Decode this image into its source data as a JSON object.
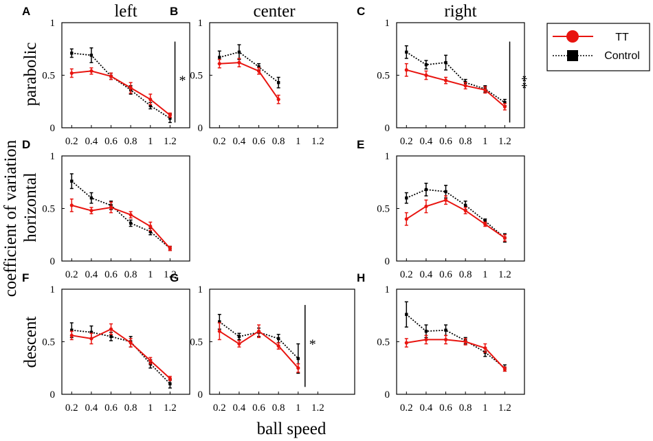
{
  "figure": {
    "column_titles": [
      "left",
      "center",
      "right"
    ],
    "row_titles": [
      "parabolic",
      "horizontal",
      "descent"
    ],
    "ylabel": "coefficient of variation",
    "xlabel": "ball speed",
    "legend": {
      "series": [
        {
          "name": "TT",
          "color": "#e8140f",
          "marker": "circle",
          "style": "solid"
        },
        {
          "name": "Control",
          "color": "#000000",
          "marker": "square",
          "style": "dotted"
        }
      ]
    }
  },
  "chart_data": [
    {
      "letter": "A",
      "row": "parabolic",
      "col": "left",
      "type": "line",
      "x": [
        0.2,
        0.4,
        0.6,
        0.8,
        1,
        1.2
      ],
      "xticks": [
        "0.2",
        "0.4",
        "0.6",
        "0.8",
        "1",
        "1.2"
      ],
      "yticks": [
        "0",
        "0.5",
        "1"
      ],
      "ylim": [
        0,
        1
      ],
      "series": [
        {
          "name": "TT",
          "values": [
            0.52,
            0.54,
            0.49,
            0.38,
            0.27,
            0.12
          ],
          "errors": [
            0.04,
            0.03,
            0.03,
            0.05,
            0.05,
            0.02
          ]
        },
        {
          "name": "Control",
          "values": [
            0.71,
            0.69,
            0.49,
            0.36,
            0.21,
            0.09
          ],
          "errors": [
            0.04,
            0.07,
            0.03,
            0.04,
            0.03,
            0.04
          ]
        }
      ],
      "significance": {
        "label": "*",
        "x": 1.25,
        "y_range": [
          0.05,
          0.82
        ]
      }
    },
    {
      "letter": "B",
      "row": "parabolic",
      "col": "center",
      "type": "line",
      "x": [
        0.2,
        0.4,
        0.6,
        0.8
      ],
      "xticks": [
        "0.2",
        "0.4",
        "0.6",
        "0.8",
        "1",
        "1.2"
      ],
      "yticks": [
        "0",
        "0.5",
        "1"
      ],
      "ylim": [
        0,
        1
      ],
      "series": [
        {
          "name": "TT",
          "values": [
            0.61,
            0.62,
            0.54,
            0.27
          ],
          "errors": [
            0.04,
            0.04,
            0.03,
            0.04
          ]
        },
        {
          "name": "Control",
          "values": [
            0.67,
            0.72,
            0.58,
            0.43
          ],
          "errors": [
            0.06,
            0.07,
            0.03,
            0.05
          ]
        }
      ]
    },
    {
      "letter": "C",
      "row": "parabolic",
      "col": "right",
      "type": "line",
      "x": [
        0.2,
        0.4,
        0.6,
        0.8,
        1,
        1.2
      ],
      "xticks": [
        "0.2",
        "0.4",
        "0.6",
        "0.8",
        "1",
        "1.2"
      ],
      "yticks": [
        "0",
        "0.5",
        "1"
      ],
      "ylim": [
        0,
        1
      ],
      "series": [
        {
          "name": "TT",
          "values": [
            0.55,
            0.5,
            0.45,
            0.4,
            0.36,
            0.2
          ],
          "errors": [
            0.06,
            0.04,
            0.03,
            0.03,
            0.03,
            0.03
          ]
        },
        {
          "name": "Control",
          "values": [
            0.72,
            0.6,
            0.62,
            0.43,
            0.37,
            0.24
          ],
          "errors": [
            0.06,
            0.04,
            0.07,
            0.03,
            0.03,
            0.03
          ]
        }
      ],
      "significance": {
        "label": "**",
        "x": 1.25,
        "y_range": [
          0.05,
          0.82
        ]
      }
    },
    {
      "letter": "D",
      "row": "horizontal",
      "col": "left",
      "type": "line",
      "x": [
        0.2,
        0.4,
        0.6,
        0.8,
        1,
        1.2
      ],
      "xticks": [
        "0.2",
        "0.4",
        "0.6",
        "0.8",
        "1",
        "1.2"
      ],
      "yticks": [
        "0",
        "0.5",
        "1"
      ],
      "ylim": [
        0,
        1
      ],
      "series": [
        {
          "name": "TT",
          "values": [
            0.53,
            0.48,
            0.51,
            0.44,
            0.33,
            0.12
          ],
          "errors": [
            0.06,
            0.03,
            0.05,
            0.03,
            0.04,
            0.02
          ]
        },
        {
          "name": "Control",
          "values": [
            0.76,
            0.6,
            0.53,
            0.36,
            0.28,
            0.12
          ],
          "errors": [
            0.07,
            0.05,
            0.04,
            0.03,
            0.03,
            0.02
          ]
        }
      ]
    },
    {
      "letter": "E",
      "row": "horizontal",
      "col": "right",
      "type": "line",
      "x": [
        0.2,
        0.4,
        0.6,
        0.8,
        1,
        1.2
      ],
      "xticks": [
        "0.2",
        "0.4",
        "0.6",
        "0.8",
        "1",
        "1.2"
      ],
      "yticks": [
        "0",
        "0.5",
        "1"
      ],
      "ylim": [
        0,
        1
      ],
      "series": [
        {
          "name": "TT",
          "values": [
            0.4,
            0.52,
            0.58,
            0.48,
            0.35,
            0.22
          ],
          "errors": [
            0.06,
            0.06,
            0.04,
            0.03,
            0.02,
            0.03
          ]
        },
        {
          "name": "Control",
          "values": [
            0.6,
            0.68,
            0.66,
            0.53,
            0.38,
            0.22
          ],
          "errors": [
            0.05,
            0.06,
            0.06,
            0.04,
            0.02,
            0.04
          ]
        }
      ]
    },
    {
      "letter": "F",
      "row": "descent",
      "col": "left",
      "type": "line",
      "x": [
        0.2,
        0.4,
        0.6,
        0.8,
        1,
        1.2
      ],
      "xticks": [
        "0.2",
        "0.4",
        "0.6",
        "0.8",
        "1",
        "1.2"
      ],
      "yticks": [
        "0",
        "0.5",
        "1"
      ],
      "ylim": [
        0,
        1
      ],
      "series": [
        {
          "name": "TT",
          "values": [
            0.56,
            0.53,
            0.62,
            0.49,
            0.32,
            0.15
          ],
          "errors": [
            0.04,
            0.05,
            0.05,
            0.04,
            0.03,
            0.02
          ]
        },
        {
          "name": "Control",
          "values": [
            0.61,
            0.59,
            0.55,
            0.5,
            0.29,
            0.1
          ],
          "errors": [
            0.07,
            0.06,
            0.04,
            0.05,
            0.04,
            0.04
          ]
        }
      ]
    },
    {
      "letter": "G",
      "row": "descent",
      "col": "center",
      "type": "line",
      "x": [
        0.2,
        0.4,
        0.6,
        0.8,
        1
      ],
      "xticks": [
        "0.2",
        "0.4",
        "0.6",
        "0.8",
        "1",
        "1.2"
      ],
      "yticks": [
        "0",
        "0.5",
        "1"
      ],
      "ylim": [
        0,
        1
      ],
      "series": [
        {
          "name": "TT",
          "values": [
            0.6,
            0.48,
            0.6,
            0.46,
            0.25
          ],
          "errors": [
            0.08,
            0.03,
            0.06,
            0.03,
            0.04
          ]
        },
        {
          "name": "Control",
          "values": [
            0.69,
            0.55,
            0.59,
            0.53,
            0.34
          ],
          "errors": [
            0.07,
            0.03,
            0.04,
            0.04,
            0.14
          ]
        }
      ],
      "significance": {
        "label": "*",
        "x": 1.07,
        "y_range": [
          0.07,
          0.85
        ]
      }
    },
    {
      "letter": "H",
      "row": "descent",
      "col": "right",
      "type": "line",
      "x": [
        0.2,
        0.4,
        0.6,
        0.8,
        1,
        1.2
      ],
      "xticks": [
        "0.2",
        "0.4",
        "0.6",
        "0.8",
        "1",
        "1.2"
      ],
      "yticks": [
        "0",
        "0.5",
        "1"
      ],
      "ylim": [
        0,
        1
      ],
      "series": [
        {
          "name": "TT",
          "values": [
            0.49,
            0.52,
            0.52,
            0.5,
            0.44,
            0.24
          ],
          "errors": [
            0.04,
            0.04,
            0.04,
            0.03,
            0.04,
            0.02
          ]
        },
        {
          "name": "Control",
          "values": [
            0.76,
            0.6,
            0.61,
            0.51,
            0.4,
            0.25
          ],
          "errors": [
            0.12,
            0.06,
            0.05,
            0.03,
            0.04,
            0.03
          ]
        }
      ]
    }
  ]
}
